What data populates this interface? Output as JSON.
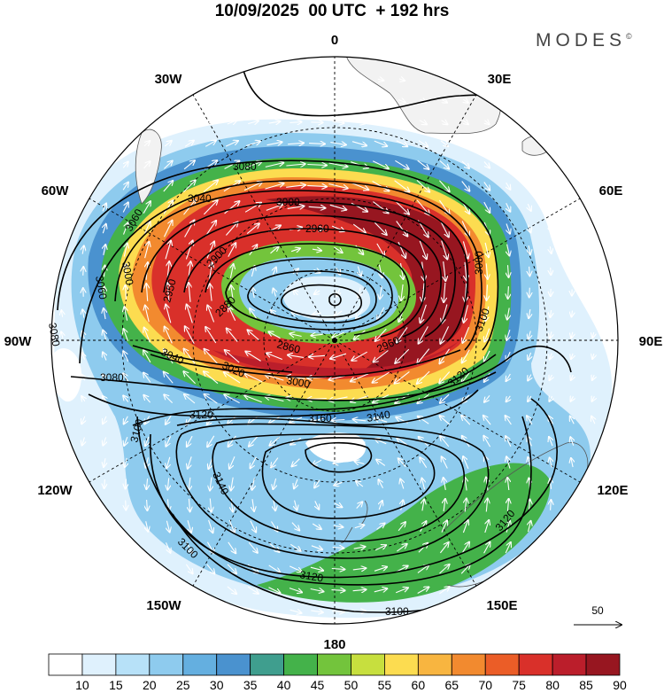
{
  "title": "10/09/2025  00 UTC  + 192 hrs",
  "brand": {
    "name": "MODES",
    "mark": "©"
  },
  "longitude_labels": {
    "n0": "0",
    "n30e": "30E",
    "n60e": "60E",
    "n90e": "90E",
    "n120e": "120E",
    "n150e": "150E",
    "n180": "180",
    "n150w": "150W",
    "n120w": "120W",
    "n90w": "90W",
    "n60w": "60W",
    "n30w": "30W"
  },
  "contour_labels": {
    "c1": "3080",
    "c2": "3040",
    "c3": "3060",
    "c4": "3000",
    "c5": "2960",
    "c6": "2900",
    "c7": "2950",
    "c8": "3060",
    "c9": "3000",
    "c10": "2880",
    "c11": "2860",
    "c12": "2960",
    "c13": "3080",
    "c14": "3040",
    "c15": "3020",
    "c16": "3000",
    "c17": "3080",
    "c18": "3100",
    "c19": "3080",
    "c20": "3120",
    "c21": "3120",
    "c22": "3160",
    "c23": "3140",
    "c24": "3100",
    "c25": "3140",
    "c26": "3120",
    "c27": "3120",
    "c28": "3100",
    "c29": "3100"
  },
  "vector_reference": {
    "label": "50"
  },
  "colorbar": {
    "colors": [
      "#ffffff",
      "#dff1fd",
      "#b7e1f8",
      "#8ecbee",
      "#64afe0",
      "#4a92cf",
      "#3f9e8e",
      "#44b24a",
      "#73c43c",
      "#c7df3e",
      "#fcdc50",
      "#f8b540",
      "#f28a2f",
      "#eb5d27",
      "#d9302a",
      "#bb1e2b",
      "#971620"
    ],
    "ticks": [
      "10",
      "15",
      "20",
      "25",
      "30",
      "35",
      "40",
      "45",
      "50",
      "55",
      "60",
      "65",
      "70",
      "75",
      "80",
      "85",
      "90"
    ]
  }
}
